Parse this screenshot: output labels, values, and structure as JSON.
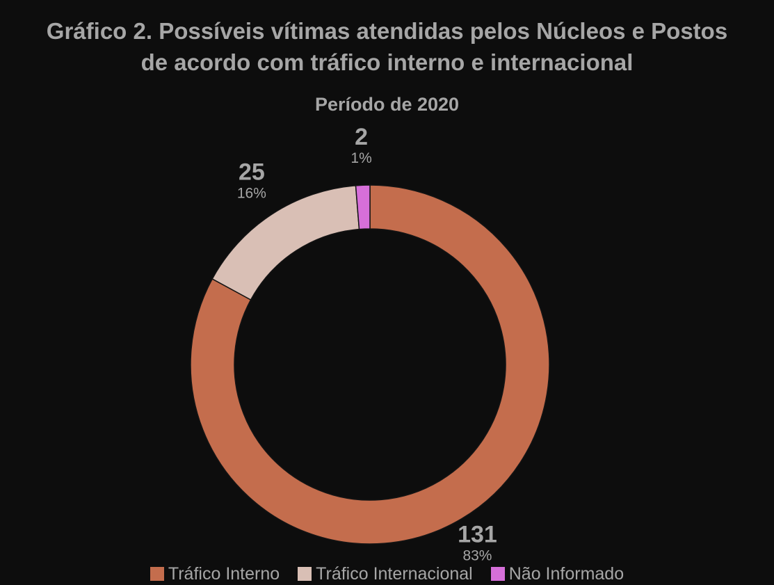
{
  "title_line1": "Gráfico 2. Possíveis vítimas atendidas pelos Núcleos e Postos",
  "title_line2": "de acordo com tráfico interno e internacional",
  "subtitle": "Período de 2020",
  "colors": {
    "background": "#0d0d0d",
    "text": "#a6a6a6",
    "slice_border": "#141414"
  },
  "chart_data": {
    "type": "pie",
    "donut": true,
    "title": "Gráfico 2. Possíveis vítimas atendidas pelos Núcleos e Postos de acordo com tráfico interno e internacional",
    "subtitle": "Período de 2020",
    "legend_position": "bottom",
    "slices": [
      {
        "label": "Tráfico Interno",
        "value": 131,
        "percent_label": "83%",
        "color": "#c46d4d"
      },
      {
        "label": "Tráfico Internacional",
        "value": 25,
        "percent_label": "16%",
        "color": "#d9bfb5"
      },
      {
        "label": "Não Informado",
        "value": 2,
        "percent_label": "1%",
        "color": "#d66fd9"
      }
    ]
  }
}
